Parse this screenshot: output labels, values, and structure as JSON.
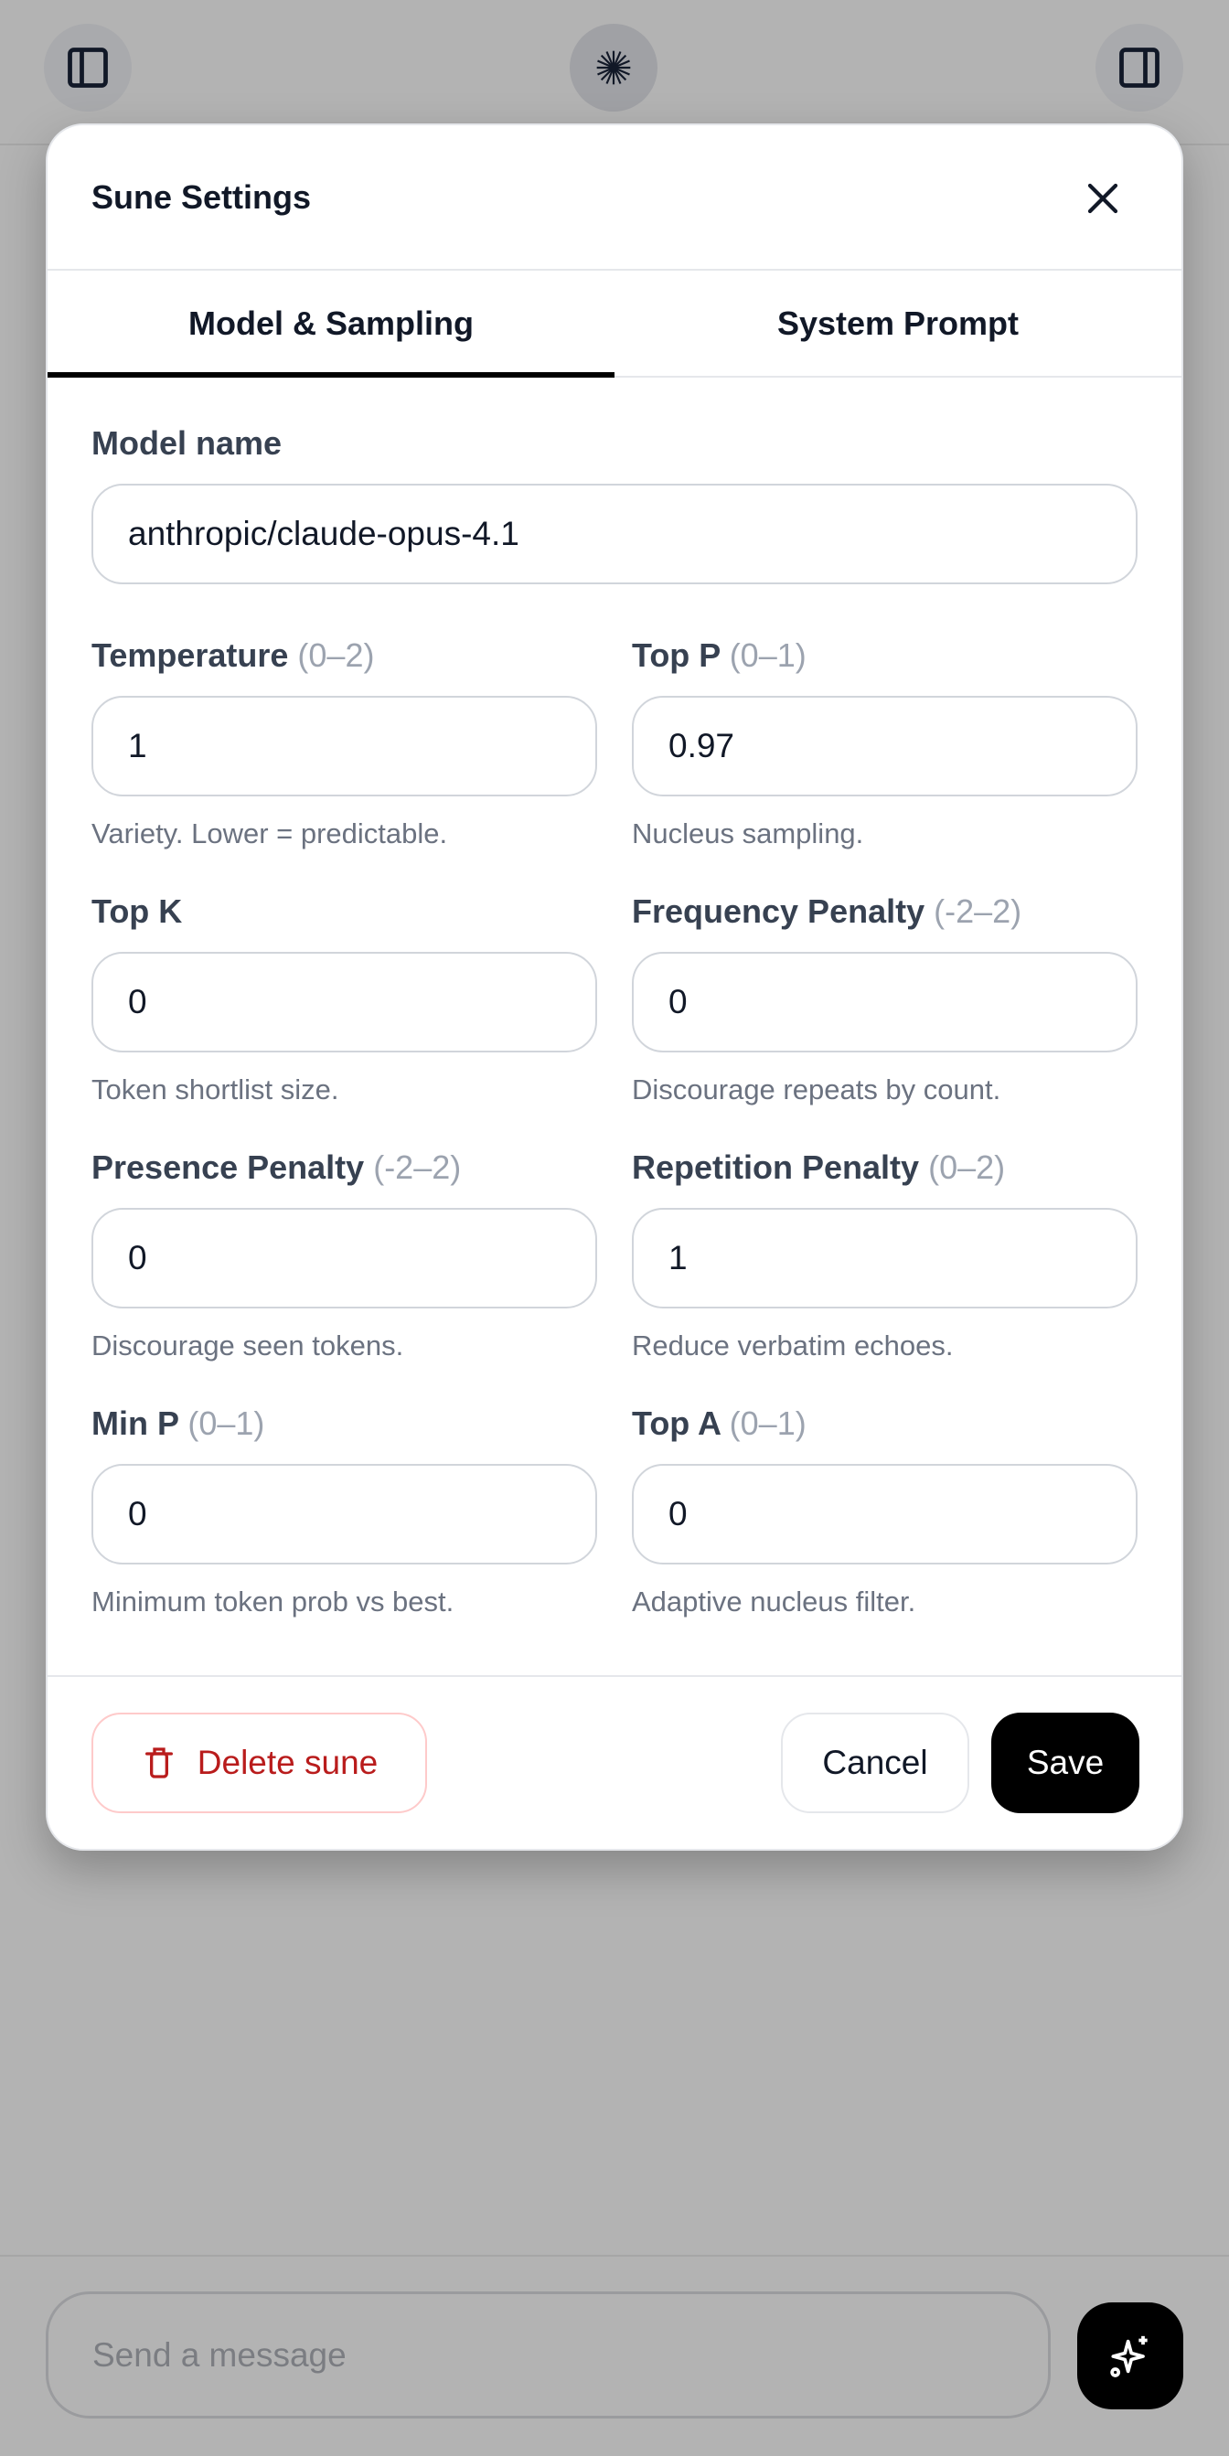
{
  "header": {
    "left_icon": "sidebar-left-icon",
    "center_icon": "starburst-logo-icon",
    "right_icon": "sidebar-right-icon"
  },
  "modal": {
    "title": "Sune Settings",
    "close_icon": "close-icon",
    "tabs": [
      {
        "label": "Model & Sampling",
        "active": true
      },
      {
        "label": "System Prompt",
        "active": false
      }
    ],
    "model_name": {
      "label": "Model name",
      "value": "anthropic/claude-opus-4.1"
    },
    "fields": [
      {
        "label": "Temperature",
        "range": "(0–2)",
        "value": "1",
        "hint": "Variety. Lower = predictable."
      },
      {
        "label": "Top P",
        "range": "(0–1)",
        "value": "0.97",
        "hint": "Nucleus sampling."
      },
      {
        "label": "Top K",
        "range": "",
        "value": "0",
        "hint": "Token shortlist size."
      },
      {
        "label": "Frequency Penalty",
        "range": "(-2–2)",
        "value": "0",
        "hint": "Discourage repeats by count."
      },
      {
        "label": "Presence Penalty",
        "range": "(-2–2)",
        "value": "0",
        "hint": "Discourage seen tokens."
      },
      {
        "label": "Repetition Penalty",
        "range": "(0–2)",
        "value": "1",
        "hint": "Reduce verbatim echoes."
      },
      {
        "label": "Min P",
        "range": "(0–1)",
        "value": "0",
        "hint": "Minimum token prob vs best."
      },
      {
        "label": "Top A",
        "range": "(0–1)",
        "value": "0",
        "hint": "Adaptive nucleus filter."
      }
    ],
    "footer": {
      "delete_label": "Delete sune",
      "delete_icon": "trash-icon",
      "cancel_label": "Cancel",
      "save_label": "Save"
    }
  },
  "composer": {
    "placeholder": "Send a message",
    "send_icon": "sparkle-icon"
  },
  "colors": {
    "danger": "#b91c1c",
    "primary": "#000000",
    "overlay": "#b3b3b3"
  }
}
